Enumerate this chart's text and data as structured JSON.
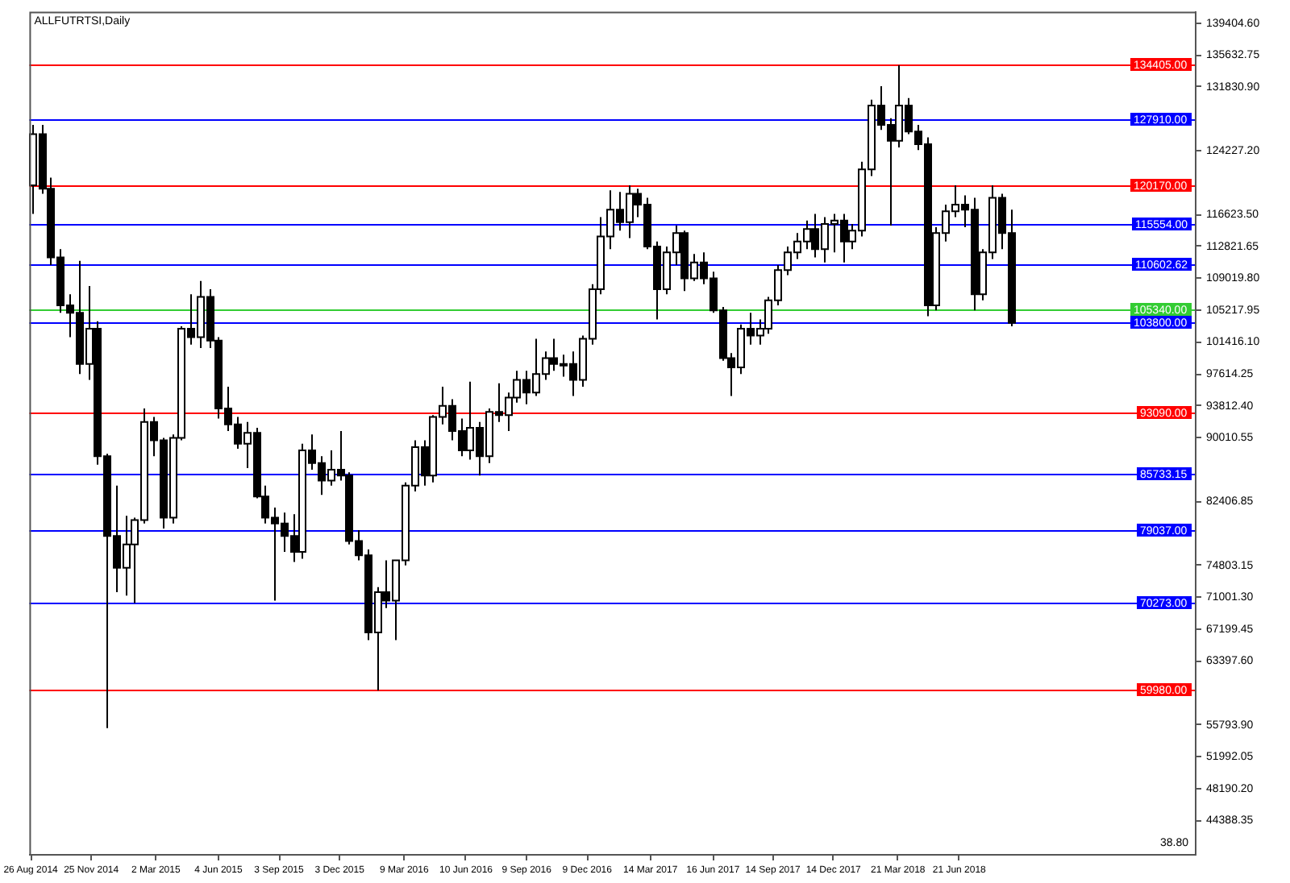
{
  "chart_data": {
    "type": "candlestick",
    "title": "ALLFUTRTSI,Daily",
    "color": "#000000",
    "grid": false,
    "x": [
      "2014-08-28",
      "2014-09-11",
      "2014-09-25",
      "2014-10-09",
      "2014-10-23",
      "2014-11-06",
      "2014-11-20",
      "2014-12-04",
      "2014-12-18",
      "2015-01-01",
      "2015-01-15",
      "2015-01-29",
      "2015-02-12",
      "2015-02-26",
      "2015-03-12",
      "2015-03-26",
      "2015-04-09",
      "2015-04-23",
      "2015-05-07",
      "2015-05-21",
      "2015-06-04",
      "2015-06-18",
      "2015-07-02",
      "2015-07-16",
      "2015-07-30",
      "2015-08-13",
      "2015-08-27",
      "2015-09-10",
      "2015-09-24",
      "2015-10-08",
      "2015-10-22",
      "2015-11-05",
      "2015-11-19",
      "2015-12-03",
      "2015-12-17",
      "2015-12-31",
      "2016-01-14",
      "2016-01-28",
      "2016-02-11",
      "2016-02-25",
      "2016-03-10",
      "2016-03-24",
      "2016-04-07",
      "2016-04-21",
      "2016-05-05",
      "2016-05-19",
      "2016-06-02",
      "2016-06-16",
      "2016-06-30",
      "2016-07-14",
      "2016-07-28",
      "2016-08-11",
      "2016-08-25",
      "2016-09-08",
      "2016-09-22",
      "2016-10-06",
      "2016-10-20",
      "2016-11-03",
      "2016-11-17",
      "2016-12-01",
      "2016-12-15",
      "2016-12-29",
      "2017-01-12",
      "2017-01-26",
      "2017-02-09",
      "2017-02-23",
      "2017-03-09",
      "2017-03-23",
      "2017-04-06",
      "2017-04-20",
      "2017-05-04",
      "2017-05-18",
      "2017-06-01",
      "2017-06-15",
      "2017-06-29",
      "2017-07-13",
      "2017-07-27",
      "2017-08-10",
      "2017-08-24",
      "2017-09-07",
      "2017-09-21",
      "2017-10-05",
      "2017-10-19",
      "2017-11-02",
      "2017-11-16",
      "2017-11-30",
      "2017-12-14",
      "2017-12-28",
      "2018-01-11",
      "2018-01-25",
      "2018-02-08",
      "2018-02-22",
      "2018-03-08",
      "2018-03-22",
      "2018-04-05",
      "2018-04-19",
      "2018-05-03",
      "2018-05-17",
      "2018-05-31",
      "2018-06-14",
      "2018-06-28",
      "2018-07-12",
      "2018-07-26",
      "2018-08-09",
      "2018-08-23",
      "2018-09-06"
    ],
    "ohlc": [
      [
        120100,
        127300,
        116700,
        126200
      ],
      [
        126200,
        127300,
        119100,
        119700
      ],
      [
        119700,
        121000,
        110600,
        111500
      ],
      [
        111500,
        112500,
        104900,
        105800
      ],
      [
        105800,
        107100,
        102000,
        104900
      ],
      [
        104900,
        111100,
        97600,
        98800
      ],
      [
        98800,
        108100,
        96900,
        103000
      ],
      [
        103000,
        103900,
        86800,
        87800
      ],
      [
        87800,
        88100,
        55400,
        78300
      ],
      [
        78300,
        84300,
        71600,
        74500
      ],
      [
        74500,
        80700,
        71200,
        77300
      ],
      [
        77300,
        80500,
        70300,
        80200
      ],
      [
        80200,
        93500,
        79800,
        91900
      ],
      [
        91900,
        92500,
        87800,
        89700
      ],
      [
        89700,
        90000,
        79200,
        80500
      ],
      [
        80500,
        90400,
        79800,
        90000
      ],
      [
        90000,
        103300,
        89700,
        103000
      ],
      [
        103000,
        107100,
        101100,
        102000
      ],
      [
        102000,
        108700,
        100700,
        106800
      ],
      [
        106800,
        107700,
        100700,
        101600
      ],
      [
        101600,
        102000,
        92300,
        93500
      ],
      [
        93500,
        96100,
        90800,
        91600
      ],
      [
        91600,
        92500,
        88700,
        89300
      ],
      [
        89300,
        91900,
        86400,
        90600
      ],
      [
        90600,
        91200,
        82800,
        83000
      ],
      [
        83000,
        84300,
        79800,
        80500
      ],
      [
        80500,
        81700,
        70600,
        79800
      ],
      [
        79800,
        81100,
        76400,
        78300
      ],
      [
        78300,
        80900,
        75200,
        76400
      ],
      [
        76400,
        89300,
        75600,
        88500
      ],
      [
        88500,
        90400,
        86200,
        87000
      ],
      [
        87000,
        87800,
        83200,
        84900
      ],
      [
        84900,
        88500,
        84300,
        86200
      ],
      [
        86200,
        90800,
        84900,
        85500
      ],
      [
        85500,
        85900,
        77300,
        77700
      ],
      [
        77700,
        79000,
        75400,
        76000
      ],
      [
        76000,
        76700,
        65900,
        66800
      ],
      [
        66800,
        72200,
        59900,
        71600
      ],
      [
        71600,
        75400,
        69700,
        70600
      ],
      [
        70600,
        75400,
        65900,
        75400
      ],
      [
        75400,
        84700,
        74800,
        84300
      ],
      [
        84300,
        89700,
        83600,
        88900
      ],
      [
        88900,
        89700,
        84300,
        85500
      ],
      [
        85500,
        92700,
        84700,
        92500
      ],
      [
        92500,
        96100,
        91600,
        93800
      ],
      [
        93800,
        94600,
        89700,
        90800
      ],
      [
        90800,
        92300,
        87800,
        88500
      ],
      [
        88500,
        96700,
        87400,
        91200
      ],
      [
        91200,
        91900,
        85500,
        87800
      ],
      [
        87800,
        93500,
        87000,
        93100
      ],
      [
        93100,
        96500,
        91900,
        92700
      ],
      [
        92700,
        95400,
        90800,
        94800
      ],
      [
        94800,
        98000,
        94200,
        96900
      ],
      [
        96900,
        98000,
        94000,
        95400
      ],
      [
        95400,
        101800,
        95000,
        97600
      ],
      [
        97600,
        100300,
        96900,
        99500
      ],
      [
        99500,
        101800,
        98000,
        98800
      ],
      [
        98800,
        99900,
        97300,
        98800
      ],
      [
        98800,
        100300,
        95000,
        96900
      ],
      [
        96900,
        102200,
        96100,
        101800
      ],
      [
        101800,
        108300,
        101100,
        107700
      ],
      [
        107700,
        116300,
        107100,
        114000
      ],
      [
        114000,
        119500,
        112500,
        117200
      ],
      [
        117200,
        119300,
        114700,
        115700
      ],
      [
        115700,
        120100,
        113800,
        119100
      ],
      [
        119100,
        119700,
        116300,
        117800
      ],
      [
        117800,
        118600,
        112500,
        112800
      ],
      [
        112800,
        113400,
        104100,
        107700
      ],
      [
        107700,
        112800,
        107100,
        112100
      ],
      [
        112100,
        115300,
        110600,
        114400
      ],
      [
        114400,
        114700,
        107500,
        109000
      ],
      [
        109000,
        111900,
        108700,
        110900
      ],
      [
        110900,
        112100,
        108300,
        109000
      ],
      [
        109000,
        109800,
        104900,
        105200
      ],
      [
        105200,
        105600,
        99200,
        99500
      ],
      [
        99500,
        100100,
        95000,
        98400
      ],
      [
        98400,
        103500,
        97600,
        103000
      ],
      [
        103000,
        104900,
        101100,
        102200
      ],
      [
        102200,
        104100,
        101100,
        103000
      ],
      [
        103000,
        106800,
        102400,
        106400
      ],
      [
        106400,
        110600,
        105800,
        110000
      ],
      [
        110000,
        112800,
        109400,
        112100
      ],
      [
        112100,
        114400,
        111300,
        113400
      ],
      [
        113400,
        115900,
        112500,
        114900
      ],
      [
        114900,
        116700,
        111500,
        112500
      ],
      [
        112500,
        116300,
        110900,
        115500
      ],
      [
        115500,
        116700,
        112100,
        115900
      ],
      [
        115900,
        116700,
        110900,
        113400
      ],
      [
        113400,
        115500,
        112500,
        114700
      ],
      [
        114700,
        122900,
        114000,
        122000
      ],
      [
        122000,
        130300,
        121200,
        129600
      ],
      [
        129600,
        131900,
        126700,
        127300
      ],
      [
        127300,
        128100,
        115300,
        125400
      ],
      [
        125400,
        134400,
        124600,
        129600
      ],
      [
        129600,
        130500,
        126200,
        126500
      ],
      [
        126500,
        127300,
        124300,
        125000
      ],
      [
        125000,
        125800,
        104500,
        105800
      ],
      [
        105800,
        115100,
        105200,
        114400
      ],
      [
        114400,
        117800,
        113400,
        117000
      ],
      [
        117000,
        120100,
        116300,
        117800
      ],
      [
        117800,
        118900,
        115100,
        117200
      ],
      [
        117200,
        118600,
        105200,
        107100
      ],
      [
        107100,
        112500,
        106400,
        112100
      ],
      [
        112100,
        120100,
        111300,
        118600
      ],
      [
        118600,
        119100,
        112500,
        114400
      ],
      [
        114400,
        117200,
        103300,
        103700
      ]
    ],
    "xlim": [
      "2014-08-24",
      "2019-06-10"
    ],
    "xticks": [
      {
        "value": "2014-08-26",
        "label": "26 Aug 2014"
      },
      {
        "value": "2014-11-25",
        "label": "25 Nov 2014"
      },
      {
        "value": "2015-03-02",
        "label": "2 Mar 2015"
      },
      {
        "value": "2015-06-04",
        "label": "4 Jun 2015"
      },
      {
        "value": "2015-09-03",
        "label": "3 Sep 2015"
      },
      {
        "value": "2015-12-03",
        "label": "3 Dec 2015"
      },
      {
        "value": "2016-03-09",
        "label": "9 Mar 2016"
      },
      {
        "value": "2016-06-10",
        "label": "10 Jun 2016"
      },
      {
        "value": "2016-09-09",
        "label": "9 Sep 2016"
      },
      {
        "value": "2016-12-09",
        "label": "9 Dec 2016"
      },
      {
        "value": "2017-03-14",
        "label": "14 Mar 2017"
      },
      {
        "value": "2017-06-16",
        "label": "16 Jun 2017"
      },
      {
        "value": "2017-09-14",
        "label": "14 Sep 2017"
      },
      {
        "value": "2017-12-14",
        "label": "14 Dec 2017"
      },
      {
        "value": "2018-03-21",
        "label": "21 Mar 2018"
      },
      {
        "value": "2018-06-21",
        "label": "21 Jun 2018"
      }
    ],
    "ylim": [
      40400,
      140800
    ],
    "yticks": [
      {
        "value": 139404.6,
        "label": "139404.60"
      },
      135632.75,
      {
        "value": 131830.9,
        "label": "131830.90"
      },
      {
        "value": 124227.2,
        "label": "124227.20"
      },
      {
        "value": 116623.5,
        "label": "116623.50"
      },
      112821.65,
      {
        "value": 109019.8,
        "label": "109019.80"
      },
      105217.95,
      {
        "value": 101416.1,
        "label": "101416.10"
      },
      97614.25,
      {
        "value": 93812.4,
        "label": "93812.40"
      },
      90010.55,
      82406.85,
      74803.15,
      {
        "value": 71001.3,
        "label": "71001.30"
      },
      67199.45,
      {
        "value": 63397.6,
        "label": "63397.60"
      },
      {
        "value": 55793.9,
        "label": "55793.90"
      },
      51992.05,
      {
        "value": 48190.2,
        "label": "48190.20"
      },
      44388.35
    ],
    "ref_lines": [
      {
        "axis": "y",
        "value": 134405,
        "label": "134405.00",
        "color": "#ff0000"
      },
      {
        "axis": "y",
        "value": 127910,
        "label": "127910.00",
        "color": "#0000ff"
      },
      {
        "axis": "y",
        "value": 120170,
        "label": "120170.00",
        "color": "#ff0000"
      },
      {
        "axis": "y",
        "value": 115554,
        "label": "115554.00",
        "color": "#0000ff"
      },
      {
        "axis": "y",
        "value": 110602.62,
        "label": "110602.62",
        "color": "#0000ff"
      },
      {
        "axis": "y",
        "value": 105340,
        "label": "105340.00",
        "color": "#33cc33"
      },
      {
        "axis": "y",
        "value": 103800,
        "label": "103800.00",
        "color": "#0000ff"
      },
      {
        "axis": "y",
        "value": 93090,
        "label": "93090.00",
        "color": "#ff0000"
      },
      {
        "axis": "y",
        "value": 85733.15,
        "label": "85733.15",
        "color": "#0000ff"
      },
      {
        "axis": "y",
        "value": 79037,
        "label": "79037.00",
        "color": "#0000ff"
      },
      {
        "axis": "y",
        "value": 70273,
        "label": "70273.00",
        "color": "#0000ff"
      },
      {
        "axis": "y",
        "value": 59980,
        "label": "59980.00",
        "color": "#ff0000"
      }
    ],
    "annotations": [
      "38.80"
    ]
  }
}
